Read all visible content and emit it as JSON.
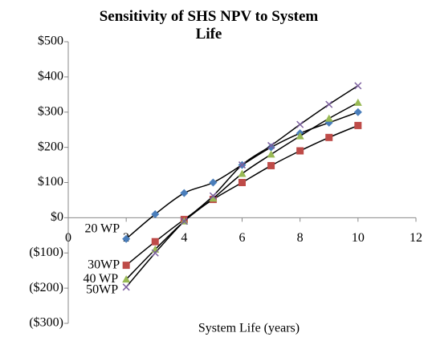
{
  "chart_data": {
    "type": "scatter",
    "title": "Sensitivity of SHS NPV to System Life",
    "x_label": "System Life (years)",
    "xlim": [
      0,
      12
    ],
    "xticks": [
      0,
      2,
      4,
      6,
      8,
      10,
      12
    ],
    "ylim": [
      -300,
      500
    ],
    "yticks": [
      {
        "value": -300,
        "label": "($300)"
      },
      {
        "value": -200,
        "label": "($200)"
      },
      {
        "value": -100,
        "label": "($100)"
      },
      {
        "value": 0,
        "label": "$0"
      },
      {
        "value": 100,
        "label": "$100"
      },
      {
        "value": 200,
        "label": "$200"
      },
      {
        "value": 300,
        "label": "$300"
      },
      {
        "value": 400,
        "label": "$400"
      },
      {
        "value": 500,
        "label": "$500"
      }
    ],
    "x": [
      2,
      3,
      4,
      5,
      6,
      7,
      8,
      9,
      10
    ],
    "series": [
      {
        "name": "20 WP",
        "color": "#4a7ebb",
        "marker": "diamond",
        "values": [
          -60,
          10,
          70,
          100,
          150,
          200,
          240,
          270,
          300
        ]
      },
      {
        "name": "30WP",
        "color": "#be4b48",
        "marker": "square",
        "values": [
          -135,
          -68,
          -5,
          52,
          100,
          148,
          190,
          228,
          262
        ]
      },
      {
        "name": "40 WP",
        "color": "#98b954",
        "marker": "triangle",
        "values": [
          -175,
          -90,
          -10,
          55,
          125,
          180,
          232,
          282,
          327
        ]
      },
      {
        "name": "50WP",
        "color": "#7d60a0",
        "marker": "x",
        "values": [
          -197,
          -100,
          -10,
          62,
          150,
          205,
          265,
          322,
          375
        ]
      }
    ]
  }
}
